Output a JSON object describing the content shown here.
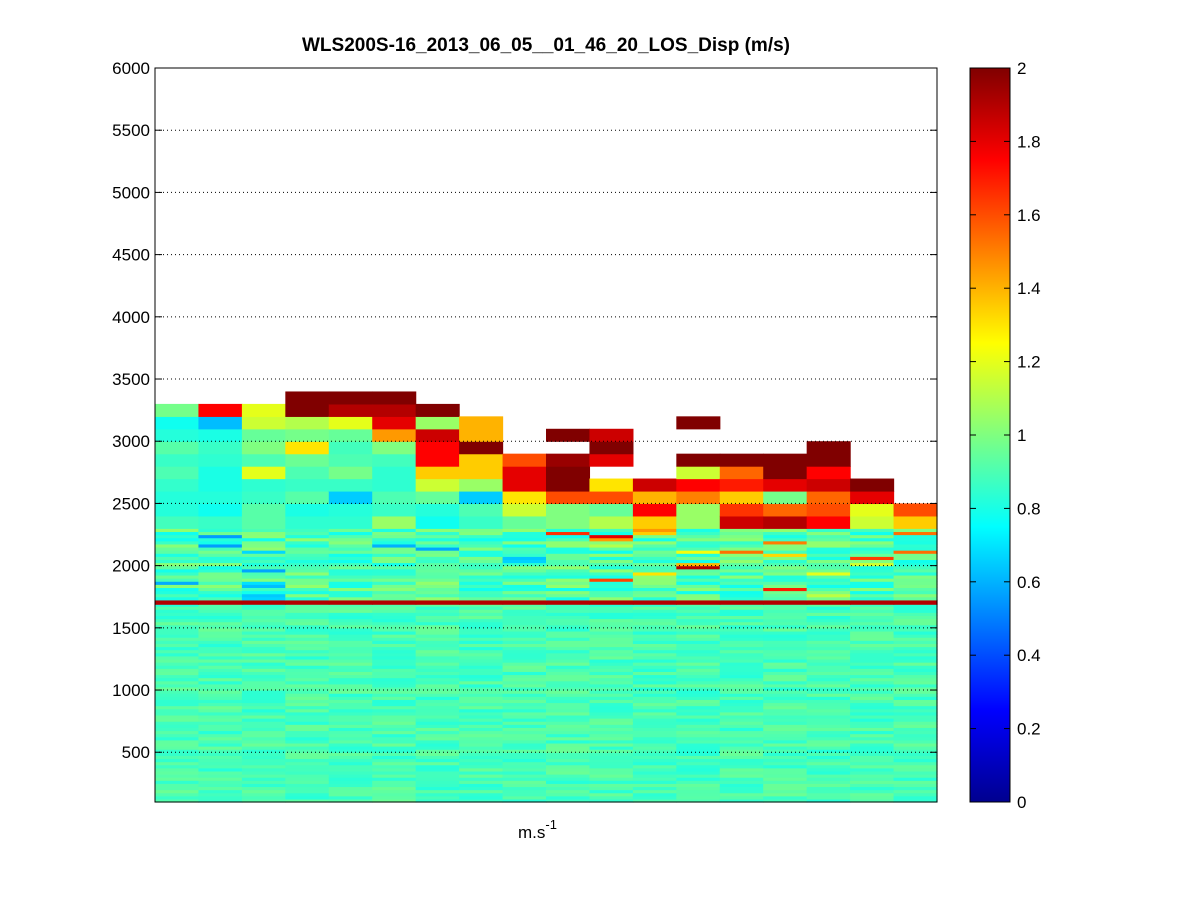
{
  "chart_data": {
    "type": "heatmap",
    "title": "WLS200S-16_2013_06_05__01_46_20_LOS_Disp (m/s)",
    "xlabel": "m.s",
    "xlabel_superscript": "-1",
    "ylabel": "",
    "ylim": [
      100,
      6000
    ],
    "yticks": [
      500,
      1000,
      1500,
      2000,
      2500,
      3000,
      3500,
      4000,
      4500,
      5000,
      5500,
      6000
    ],
    "grid_y": true,
    "colormap": "jet",
    "colorbar": {
      "ticks": [
        0,
        0.2,
        0.4,
        0.6,
        0.8,
        1,
        1.2,
        1.4,
        1.6,
        1.8,
        2
      ],
      "tick_labels": [
        "0",
        "0.2",
        "0.4",
        "0.6",
        "0.8",
        "1",
        "1.2",
        "1.4",
        "1.6",
        "1.8",
        "2"
      ],
      "range": [
        0,
        2
      ]
    },
    "n_columns": 18,
    "low_layer": {
      "range": [
        100,
        1690
      ],
      "bin_height": 25,
      "value_min": 0.82,
      "value_max": 0.96
    },
    "transition_row": {
      "y_range": [
        1690,
        1725
      ],
      "value": 1.9
    },
    "upper_blocks": [
      {
        "col": 0,
        "blocks": [
          [
            2300,
            2400,
            0.88
          ],
          [
            2400,
            2600,
            0.82
          ],
          [
            2600,
            2700,
            0.85
          ],
          [
            2700,
            2800,
            0.9
          ],
          [
            2800,
            2900,
            0.86
          ],
          [
            2900,
            3000,
            0.92
          ],
          [
            3000,
            3100,
            0.82
          ],
          [
            3100,
            3200,
            0.78
          ],
          [
            3200,
            3300,
            0.98
          ]
        ]
      },
      {
        "col": 1,
        "blocks": [
          [
            2300,
            2400,
            0.86
          ],
          [
            2400,
            2500,
            0.78
          ],
          [
            2500,
            2600,
            0.82
          ],
          [
            2600,
            2800,
            0.8
          ],
          [
            2800,
            2900,
            0.84
          ],
          [
            2900,
            3000,
            0.86
          ],
          [
            3000,
            3100,
            0.8
          ],
          [
            3100,
            3200,
            0.62
          ],
          [
            3200,
            3300,
            1.75
          ]
        ]
      },
      {
        "col": 2,
        "blocks": [
          [
            2300,
            2500,
            0.92
          ],
          [
            2500,
            2600,
            0.86
          ],
          [
            2600,
            2700,
            0.84
          ],
          [
            2700,
            2800,
            1.2
          ],
          [
            2800,
            2900,
            0.9
          ],
          [
            2900,
            3000,
            1.0
          ],
          [
            3000,
            3100,
            0.95
          ],
          [
            3100,
            3200,
            1.15
          ],
          [
            3200,
            3300,
            1.2
          ]
        ]
      },
      {
        "col": 3,
        "blocks": [
          [
            2300,
            2400,
            0.84
          ],
          [
            2400,
            2500,
            0.8
          ],
          [
            2500,
            2600,
            0.92
          ],
          [
            2600,
            2700,
            0.86
          ],
          [
            2700,
            2800,
            0.9
          ],
          [
            2800,
            2900,
            0.96
          ],
          [
            2900,
            3000,
            1.3
          ],
          [
            3000,
            3100,
            0.98
          ],
          [
            3100,
            3200,
            1.1
          ],
          [
            3200,
            3400,
            2.0
          ]
        ]
      },
      {
        "col": 4,
        "blocks": [
          [
            2300,
            2400,
            0.84
          ],
          [
            2400,
            2500,
            0.82
          ],
          [
            2500,
            2600,
            0.65
          ],
          [
            2600,
            2700,
            0.86
          ],
          [
            2700,
            2800,
            0.98
          ],
          [
            2800,
            2900,
            0.9
          ],
          [
            2900,
            3000,
            0.88
          ],
          [
            3000,
            3100,
            0.95
          ],
          [
            3100,
            3200,
            1.2
          ],
          [
            3200,
            3300,
            1.9
          ],
          [
            3300,
            3400,
            2.0
          ]
        ]
      },
      {
        "col": 5,
        "blocks": [
          [
            2300,
            2400,
            1.05
          ],
          [
            2400,
            2500,
            0.86
          ],
          [
            2500,
            2600,
            0.9
          ],
          [
            2600,
            2800,
            0.84
          ],
          [
            2800,
            2900,
            0.88
          ],
          [
            2900,
            3000,
            1.0
          ],
          [
            3000,
            3100,
            1.45
          ],
          [
            3100,
            3200,
            1.8
          ],
          [
            3200,
            3300,
            1.9
          ],
          [
            3300,
            3400,
            2.0
          ]
        ]
      },
      {
        "col": 6,
        "blocks": [
          [
            2300,
            2400,
            0.78
          ],
          [
            2400,
            2500,
            0.82
          ],
          [
            2500,
            2600,
            0.95
          ],
          [
            2600,
            2700,
            1.15
          ],
          [
            2700,
            2800,
            1.35
          ],
          [
            2800,
            3000,
            1.75
          ],
          [
            3000,
            3100,
            1.85
          ],
          [
            3100,
            3200,
            1.05
          ],
          [
            3200,
            3300,
            2.0
          ]
        ]
      },
      {
        "col": 7,
        "blocks": [
          [
            2300,
            2400,
            0.86
          ],
          [
            2400,
            2500,
            0.9
          ],
          [
            2500,
            2600,
            0.65
          ],
          [
            2600,
            2700,
            1.05
          ],
          [
            2700,
            2900,
            1.35
          ],
          [
            2900,
            3000,
            2.0
          ],
          [
            3000,
            3200,
            1.4
          ]
        ]
      },
      {
        "col": 8,
        "blocks": [
          [
            2300,
            2400,
            0.95
          ],
          [
            2400,
            2500,
            1.15
          ],
          [
            2500,
            2600,
            1.3
          ],
          [
            2600,
            2800,
            1.8
          ],
          [
            2800,
            2900,
            1.6
          ]
        ]
      },
      {
        "col": 9,
        "blocks": [
          [
            2300,
            2500,
            1.0
          ],
          [
            2500,
            2600,
            1.6
          ],
          [
            2600,
            2800,
            2.0
          ],
          [
            2800,
            2900,
            1.95
          ],
          [
            3000,
            3100,
            2.0
          ]
        ]
      },
      {
        "col": 10,
        "blocks": [
          [
            2300,
            2400,
            1.1
          ],
          [
            2400,
            2500,
            0.95
          ],
          [
            2500,
            2600,
            1.6
          ],
          [
            2600,
            2700,
            1.3
          ],
          [
            2800,
            2900,
            1.8
          ],
          [
            2900,
            3000,
            2.0
          ],
          [
            3000,
            3100,
            1.85
          ]
        ]
      },
      {
        "col": 11,
        "blocks": [
          [
            2300,
            2400,
            1.35
          ],
          [
            2400,
            2500,
            1.75
          ],
          [
            2500,
            2600,
            1.4
          ],
          [
            2600,
            2700,
            1.85
          ]
        ]
      },
      {
        "col": 12,
        "blocks": [
          [
            2300,
            2500,
            1.05
          ],
          [
            2500,
            2600,
            1.5
          ],
          [
            2600,
            2700,
            1.75
          ],
          [
            2700,
            2800,
            1.15
          ],
          [
            2800,
            2900,
            2.0
          ],
          [
            3100,
            3200,
            2.0
          ]
        ]
      },
      {
        "col": 13,
        "blocks": [
          [
            2300,
            2400,
            1.85
          ],
          [
            2400,
            2500,
            1.65
          ],
          [
            2500,
            2600,
            1.35
          ],
          [
            2600,
            2700,
            1.7
          ],
          [
            2700,
            2800,
            1.55
          ],
          [
            2800,
            2900,
            2.0
          ]
        ]
      },
      {
        "col": 14,
        "blocks": [
          [
            2300,
            2400,
            1.9
          ],
          [
            2400,
            2500,
            1.55
          ],
          [
            2500,
            2600,
            0.98
          ],
          [
            2600,
            2700,
            1.8
          ],
          [
            2700,
            2900,
            2.0
          ]
        ]
      },
      {
        "col": 15,
        "blocks": [
          [
            2300,
            2400,
            1.75
          ],
          [
            2400,
            2500,
            1.6
          ],
          [
            2500,
            2600,
            1.55
          ],
          [
            2600,
            2700,
            1.85
          ],
          [
            2700,
            2800,
            1.75
          ],
          [
            2800,
            3000,
            2.0
          ]
        ]
      },
      {
        "col": 16,
        "blocks": [
          [
            2300,
            2400,
            1.15
          ],
          [
            2400,
            2500,
            1.2
          ],
          [
            2500,
            2600,
            1.8
          ],
          [
            2600,
            2700,
            2.0
          ]
        ]
      },
      {
        "col": 17,
        "blocks": [
          [
            2300,
            2400,
            1.35
          ],
          [
            2400,
            2500,
            1.6
          ]
        ]
      }
    ],
    "mid_layer_range": [
      1725,
      2300
    ],
    "mid_layer_bin_height": 25
  }
}
